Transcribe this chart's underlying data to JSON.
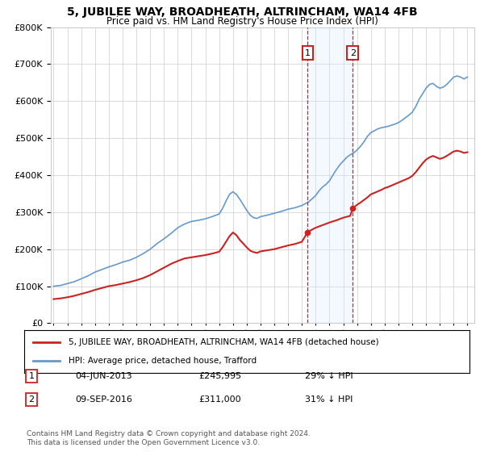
{
  "title": "5, JUBILEE WAY, BROADHEATH, ALTRINCHAM, WA14 4FB",
  "subtitle": "Price paid vs. HM Land Registry's House Price Index (HPI)",
  "legend_label_red": "5, JUBILEE WAY, BROADHEATH, ALTRINCHAM, WA14 4FB (detached house)",
  "legend_label_blue": "HPI: Average price, detached house, Trafford",
  "annotation1_date": "04-JUN-2013",
  "annotation1_price": "£245,995",
  "annotation1_hpi": "29% ↓ HPI",
  "annotation1_year": 2013.42,
  "annotation2_date": "09-SEP-2016",
  "annotation2_price": "£311,000",
  "annotation2_hpi": "31% ↓ HPI",
  "annotation2_year": 2016.69,
  "footer": "Contains HM Land Registry data © Crown copyright and database right 2024.\nThis data is licensed under the Open Government Licence v3.0.",
  "ylim": [
    0,
    800000
  ],
  "xlim_start": 1994.8,
  "xlim_end": 2025.5,
  "red_color": "#cc2222",
  "blue_color": "#6699cc",
  "shade_color": "#ddeeff",
  "grid_color": "#cccccc",
  "background_color": "#ffffff",
  "blue_years": [
    1995,
    1995.5,
    1996,
    1996.5,
    1997,
    1997.5,
    1998,
    1998.5,
    1999,
    1999.5,
    2000,
    2000.5,
    2001,
    2001.5,
    2002,
    2002.5,
    2003,
    2003.5,
    2004,
    2004.5,
    2005,
    2005.5,
    2006,
    2006.5,
    2007,
    2007.25,
    2007.5,
    2007.75,
    2008,
    2008.25,
    2008.5,
    2008.75,
    2009,
    2009.25,
    2009.5,
    2009.75,
    2010,
    2010.5,
    2011,
    2011.5,
    2012,
    2012.5,
    2013,
    2013.5,
    2014,
    2014.25,
    2014.5,
    2014.75,
    2015,
    2015.25,
    2015.5,
    2015.75,
    2016,
    2016.25,
    2016.5,
    2016.75,
    2017,
    2017.25,
    2017.5,
    2017.75,
    2018,
    2018.25,
    2018.5,
    2018.75,
    2019,
    2019.25,
    2019.5,
    2019.75,
    2020,
    2020.25,
    2020.5,
    2020.75,
    2021,
    2021.25,
    2021.5,
    2021.75,
    2022,
    2022.25,
    2022.5,
    2022.75,
    2023,
    2023.25,
    2023.5,
    2023.75,
    2024,
    2024.25,
    2024.5,
    2024.75,
    2025
  ],
  "blue_vals": [
    100000,
    102000,
    107000,
    112000,
    120000,
    128000,
    138000,
    145000,
    152000,
    158000,
    165000,
    170000,
    178000,
    188000,
    200000,
    215000,
    228000,
    242000,
    258000,
    268000,
    275000,
    278000,
    282000,
    288000,
    295000,
    310000,
    330000,
    348000,
    355000,
    348000,
    335000,
    320000,
    305000,
    292000,
    285000,
    283000,
    288000,
    292000,
    297000,
    302000,
    308000,
    312000,
    318000,
    328000,
    345000,
    358000,
    368000,
    375000,
    385000,
    400000,
    415000,
    428000,
    438000,
    448000,
    455000,
    460000,
    468000,
    478000,
    490000,
    505000,
    515000,
    520000,
    525000,
    528000,
    530000,
    532000,
    535000,
    538000,
    542000,
    548000,
    555000,
    562000,
    570000,
    585000,
    605000,
    620000,
    635000,
    645000,
    648000,
    640000,
    635000,
    638000,
    645000,
    655000,
    665000,
    668000,
    665000,
    660000,
    665000
  ],
  "red_years": [
    1995,
    1995.5,
    1996,
    1996.5,
    1997,
    1997.5,
    1998,
    1998.5,
    1999,
    1999.5,
    2000,
    2000.5,
    2001,
    2001.5,
    2002,
    2002.5,
    2003,
    2003.5,
    2004,
    2004.5,
    2005,
    2005.5,
    2006,
    2006.5,
    2007,
    2007.25,
    2007.5,
    2007.75,
    2008,
    2008.25,
    2008.5,
    2008.75,
    2009,
    2009.25,
    2009.5,
    2009.75,
    2010,
    2010.5,
    2011,
    2011.5,
    2012,
    2012.5,
    2013,
    2013.42,
    2013.5,
    2014,
    2014.5,
    2015,
    2015.5,
    2016,
    2016.5,
    2016.69,
    2017,
    2017.25,
    2017.5,
    2017.75,
    2018,
    2018.25,
    2018.5,
    2018.75,
    2019,
    2019.25,
    2019.5,
    2019.75,
    2020,
    2020.25,
    2020.5,
    2020.75,
    2021,
    2021.25,
    2021.5,
    2021.75,
    2022,
    2022.25,
    2022.5,
    2022.75,
    2023,
    2023.25,
    2023.5,
    2023.75,
    2024,
    2024.25,
    2024.5,
    2024.75,
    2025
  ],
  "red_vals": [
    65000,
    67000,
    70000,
    74000,
    79000,
    84000,
    90000,
    95000,
    100000,
    103000,
    107000,
    111000,
    116000,
    122000,
    130000,
    140000,
    150000,
    160000,
    168000,
    175000,
    178000,
    181000,
    184000,
    188000,
    193000,
    205000,
    220000,
    235000,
    245000,
    238000,
    225000,
    215000,
    205000,
    196000,
    192000,
    190000,
    194000,
    197000,
    200000,
    205000,
    210000,
    214000,
    220000,
    245995,
    248000,
    258000,
    265000,
    272000,
    278000,
    285000,
    290000,
    311000,
    320000,
    326000,
    333000,
    340000,
    348000,
    352000,
    356000,
    360000,
    365000,
    368000,
    372000,
    376000,
    380000,
    384000,
    388000,
    392000,
    398000,
    408000,
    420000,
    432000,
    442000,
    448000,
    452000,
    448000,
    444000,
    447000,
    452000,
    458000,
    464000,
    466000,
    464000,
    460000,
    462000
  ]
}
